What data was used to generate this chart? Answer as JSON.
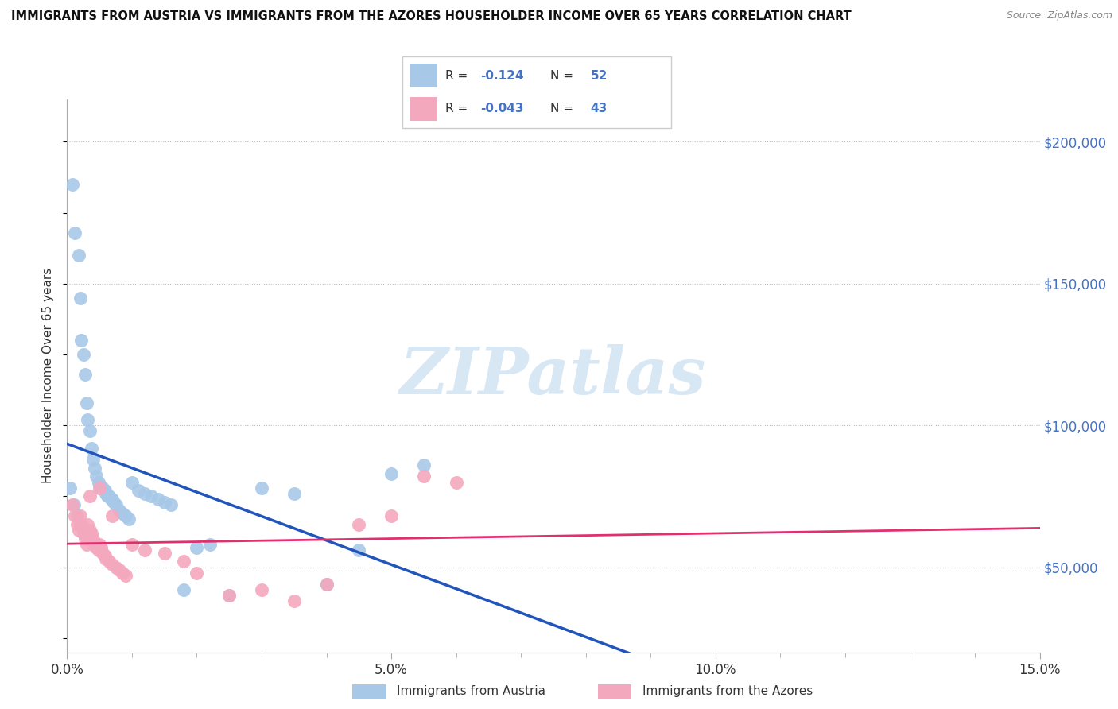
{
  "title": "IMMIGRANTS FROM AUSTRIA VS IMMIGRANTS FROM THE AZORES HOUSEHOLDER INCOME OVER 65 YEARS CORRELATION CHART",
  "source": "Source: ZipAtlas.com",
  "ylabel": "Householder Income Over 65 years",
  "xlabel_ticks": [
    "0.0%",
    "5.0%",
    "10.0%",
    "15.0%"
  ],
  "xlabel_tick_vals": [
    0.0,
    5.0,
    10.0,
    15.0
  ],
  "ytick_labels": [
    "$50,000",
    "$100,000",
    "$150,000",
    "$200,000"
  ],
  "ytick_vals": [
    50000,
    100000,
    150000,
    200000
  ],
  "xlim": [
    0.0,
    15.0
  ],
  "ylim": [
    20000,
    215000
  ],
  "legend_austria": "Immigrants from Austria",
  "legend_azores": "Immigrants from the Azores",
  "R_austria": -0.124,
  "N_austria": 52,
  "R_azores": -0.043,
  "N_azores": 43,
  "austria_color": "#a8c8e8",
  "azores_color": "#f4a8be",
  "austria_line_color": "#2255bb",
  "azores_line_color": "#e03070",
  "watermark_color": "#c8ddf0",
  "watermark": "ZIPatlas",
  "austria_x": [
    0.08,
    0.12,
    0.18,
    0.2,
    0.22,
    0.25,
    0.28,
    0.3,
    0.32,
    0.35,
    0.38,
    0.4,
    0.42,
    0.45,
    0.48,
    0.5,
    0.52,
    0.55,
    0.58,
    0.6,
    0.62,
    0.65,
    0.68,
    0.7,
    0.72,
    0.75,
    0.8,
    0.85,
    0.9,
    0.95,
    1.0,
    1.1,
    1.2,
    1.3,
    1.4,
    1.5,
    1.6,
    1.8,
    2.0,
    2.2,
    2.5,
    3.0,
    3.5,
    4.0,
    4.5,
    5.0,
    5.5,
    0.05,
    0.1,
    0.15,
    0.2,
    0.25
  ],
  "austria_y": [
    185000,
    168000,
    160000,
    145000,
    130000,
    125000,
    118000,
    108000,
    102000,
    98000,
    92000,
    88000,
    85000,
    82000,
    80000,
    79000,
    78000,
    78000,
    77000,
    76000,
    75000,
    75000,
    74000,
    74000,
    73000,
    72000,
    70000,
    69000,
    68000,
    67000,
    80000,
    77000,
    76000,
    75000,
    74000,
    73000,
    72000,
    42000,
    57000,
    58000,
    40000,
    78000,
    76000,
    44000,
    56000,
    83000,
    86000,
    78000,
    72000,
    68000,
    65000,
    62000
  ],
  "azores_x": [
    0.08,
    0.12,
    0.15,
    0.18,
    0.2,
    0.22,
    0.25,
    0.28,
    0.3,
    0.32,
    0.35,
    0.38,
    0.4,
    0.42,
    0.45,
    0.48,
    0.5,
    0.52,
    0.55,
    0.58,
    0.6,
    0.65,
    0.7,
    0.75,
    0.8,
    0.85,
    0.9,
    1.0,
    1.2,
    1.5,
    1.8,
    2.0,
    2.5,
    3.0,
    3.5,
    4.0,
    4.5,
    5.0,
    5.5,
    6.0,
    0.35,
    0.5,
    0.7
  ],
  "azores_y": [
    72000,
    68000,
    65000,
    63000,
    68000,
    65000,
    62000,
    60000,
    58000,
    65000,
    63000,
    62000,
    60000,
    58000,
    57000,
    56000,
    58000,
    57000,
    55000,
    54000,
    53000,
    52000,
    51000,
    50000,
    49000,
    48000,
    47000,
    58000,
    56000,
    55000,
    52000,
    48000,
    40000,
    42000,
    38000,
    44000,
    65000,
    68000,
    82000,
    80000,
    75000,
    78000,
    68000
  ]
}
